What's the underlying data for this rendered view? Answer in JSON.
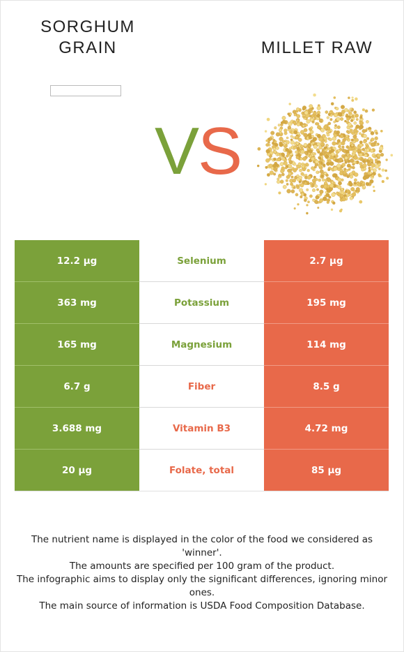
{
  "food_left": {
    "name_line1": "SORGHUM",
    "name_line2": "GRAIN",
    "color": "#7ba13a"
  },
  "food_right": {
    "name": "MILLET RAW",
    "color": "#e8694a",
    "image_icon": "millet-grains-pile"
  },
  "vs": {
    "v": "V",
    "s": "S"
  },
  "rows": [
    {
      "nutrient": "Selenium",
      "left": "12.2 µg",
      "right": "2.7 µg",
      "winner": "left"
    },
    {
      "nutrient": "Potassium",
      "left": "363 mg",
      "right": "195 mg",
      "winner": "left"
    },
    {
      "nutrient": "Magnesium",
      "left": "165 mg",
      "right": "114 mg",
      "winner": "left"
    },
    {
      "nutrient": "Fiber",
      "left": "6.7 g",
      "right": "8.5 g",
      "winner": "right"
    },
    {
      "nutrient": "Vitamin B3",
      "left": "3.688 mg",
      "right": "4.72 mg",
      "winner": "right"
    },
    {
      "nutrient": "Folate, total",
      "left": "20 µg",
      "right": "85 µg",
      "winner": "right"
    }
  ],
  "notes": [
    "The nutrient name is displayed in the color of the food we considered as 'winner'.",
    "The amounts are specified per 100 gram of the product.",
    "The infographic aims to display only the significant differences, ignoring minor ones.",
    "The main source of information is USDA Food Composition Database."
  ]
}
